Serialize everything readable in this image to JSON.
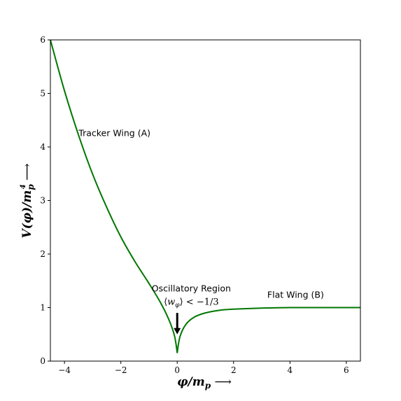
{
  "chart_data": {
    "type": "line",
    "title": "",
    "xlabel": "φ/m_p ⟶",
    "ylabel": "V(φ)/m_p⁴ ⟶",
    "xlim": [
      -4.5,
      6.5
    ],
    "ylim": [
      0,
      6
    ],
    "xticks": [
      -4,
      -2,
      0,
      2,
      4,
      6
    ],
    "xtick_labels": [
      "−4",
      "−2",
      "0",
      "2",
      "4",
      "6"
    ],
    "yticks": [
      0,
      1,
      2,
      3,
      4,
      5,
      6
    ],
    "ytick_labels": [
      "0",
      "1",
      "2",
      "3",
      "4",
      "5",
      "6"
    ],
    "grid": false,
    "series": [
      {
        "color": "#007700",
        "x": [
          -4.5,
          -4.0,
          -3.5,
          -3.0,
          -2.5,
          -2.0,
          -1.5,
          -1.0,
          -0.6,
          -0.3,
          -0.1,
          0.0,
          0.1,
          0.3,
          0.6,
          1.0,
          1.5,
          2.0,
          3.0,
          4.0,
          5.0,
          6.0,
          6.5
        ],
        "y": [
          6.0,
          5.05,
          4.22,
          3.49,
          2.87,
          2.32,
          1.86,
          1.45,
          1.1,
          0.78,
          0.48,
          0.15,
          0.46,
          0.68,
          0.82,
          0.9,
          0.95,
          0.97,
          0.99,
          1.0,
          1.0,
          1.0,
          1.0
        ]
      }
    ],
    "annotations": [
      {
        "text": "Tracker Wing (A)",
        "x": -3.5,
        "y": 4.2
      },
      {
        "text": "Oscillatory Region",
        "x": 0.5,
        "y": 1.3
      },
      {
        "text": "⟨w_φ⟩ < −1/3",
        "x": 0.5,
        "y": 1.05
      },
      {
        "text": "Flat Wing (B)",
        "x": 4.2,
        "y": 1.18
      }
    ],
    "arrow": {
      "from": [
        0.0,
        0.9
      ],
      "to": [
        0.0,
        0.5
      ],
      "color": "#000000"
    }
  }
}
